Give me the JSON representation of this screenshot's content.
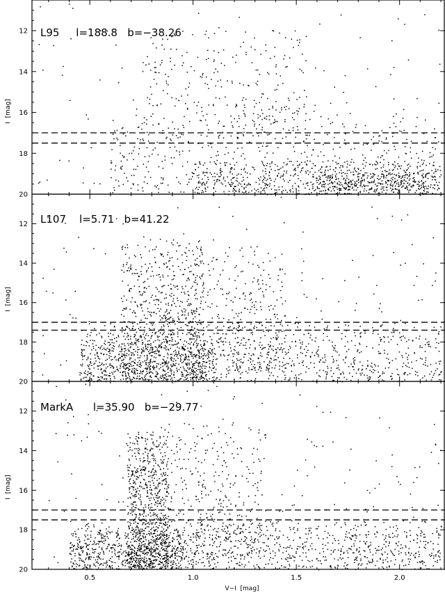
{
  "chart_data": {
    "type": "scatter",
    "xlabel": "V−I  [mag]",
    "xlim": [
      0.22,
      2.22
    ],
    "x_ticks": [
      0.5,
      1.0,
      1.5,
      2.0
    ],
    "x_tick_labels": [
      "0.5",
      "1.0",
      "1.5",
      "2.0"
    ],
    "shared_x_axis": true,
    "grid": false,
    "panels": [
      {
        "label": "L95     l=188.8   b=−38.26",
        "ylabel": "I  [mag]",
        "ylim": [
          20,
          10.5
        ],
        "y_ticks": [
          12,
          14,
          16,
          18,
          20
        ],
        "y_tick_labels": [
          "12",
          "14",
          "16",
          "18",
          "20"
        ],
        "cut_lines_I": [
          17.0,
          17.5
        ],
        "point_clouds": [
          {
            "x_range": [
              0.25,
              2.2
            ],
            "y_range": [
              10.6,
              20
            ],
            "count": 160
          },
          {
            "x_range": [
              0.75,
              1.55
            ],
            "y_range": [
              11.8,
              17.2
            ],
            "count": 260
          },
          {
            "x_range": [
              0.6,
              2.2
            ],
            "y_range": [
              16.0,
              20
            ],
            "count": 520
          },
          {
            "x_range": [
              1.0,
              2.2
            ],
            "y_range": [
              18.3,
              20
            ],
            "count": 520
          },
          {
            "x_range": [
              1.6,
              2.15
            ],
            "y_range": [
              18.9,
              19.8
            ],
            "count": 180
          }
        ]
      },
      {
        "label": "L107    l=5.71   b=41.22",
        "ylabel": "I  [mag]",
        "ylim": [
          20,
          10.5
        ],
        "y_ticks": [
          12,
          14,
          16,
          18,
          20
        ],
        "y_tick_labels": [
          "12",
          "14",
          "16",
          "18",
          "20"
        ],
        "cut_lines_I": [
          17.0,
          17.4
        ],
        "point_clouds": [
          {
            "x_range": [
              0.25,
              2.2
            ],
            "y_range": [
              10.6,
              20
            ],
            "count": 180
          },
          {
            "x_range": [
              0.65,
              1.05
            ],
            "y_range": [
              12.8,
              19.9
            ],
            "count": 700
          },
          {
            "x_range": [
              0.95,
              1.45
            ],
            "y_range": [
              13.0,
              19.5
            ],
            "count": 320
          },
          {
            "x_range": [
              0.45,
              2.2
            ],
            "y_range": [
              17.0,
              20
            ],
            "count": 900
          },
          {
            "x_range": [
              0.45,
              1.1
            ],
            "y_range": [
              17.8,
              20
            ],
            "count": 380
          }
        ]
      },
      {
        "label": "MarkA      l=35.90   b=−29.77",
        "ylabel": "I  [mag]",
        "ylim": [
          20,
          10.5
        ],
        "y_ticks": [
          12,
          14,
          16,
          18,
          20
        ],
        "y_tick_labels": [
          "12",
          "14",
          "16",
          "18",
          "20"
        ],
        "cut_lines_I": [
          17.0,
          17.5
        ],
        "point_clouds": [
          {
            "x_range": [
              0.25,
              2.2
            ],
            "y_range": [
              10.6,
              20
            ],
            "count": 180
          },
          {
            "x_range": [
              0.68,
              0.88
            ],
            "y_range": [
              13.0,
              19.9
            ],
            "count": 780
          },
          {
            "x_range": [
              0.85,
              1.35
            ],
            "y_range": [
              12.5,
              19.5
            ],
            "count": 340
          },
          {
            "x_range": [
              0.4,
              2.2
            ],
            "y_range": [
              17.5,
              20
            ],
            "count": 1000
          },
          {
            "x_range": [
              0.4,
              0.95
            ],
            "y_range": [
              18.0,
              20
            ],
            "count": 320
          }
        ]
      }
    ]
  }
}
